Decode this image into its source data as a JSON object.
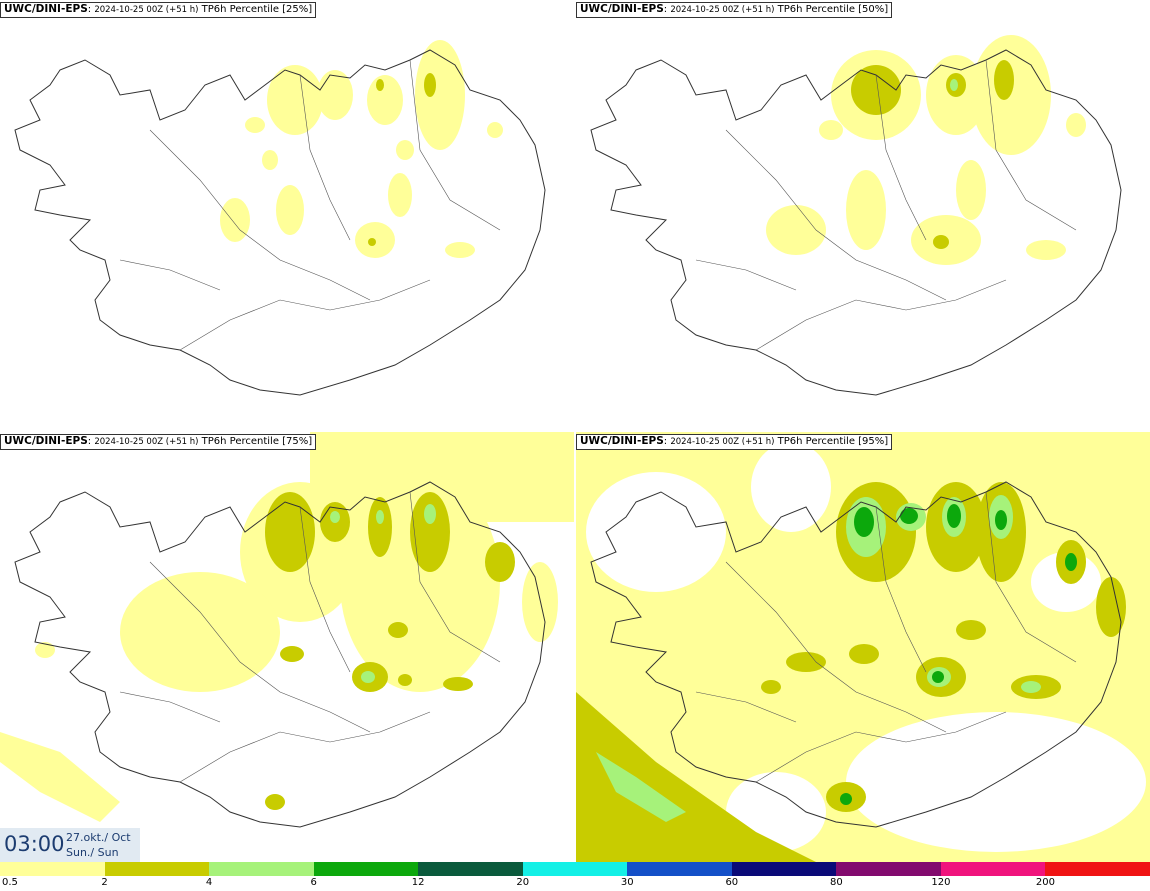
{
  "panels": [
    {
      "model": "UWC/DINI-EPS",
      "run": "2024-10-25 00Z (+51 h)",
      "field": "TP6h Percentile [25%]"
    },
    {
      "model": "UWC/DINI-EPS",
      "run": "2024-10-25 00Z (+51 h)",
      "field": "TP6h Percentile [50%]"
    },
    {
      "model": "UWC/DINI-EPS",
      "run": "2024-10-25 00Z (+51 h)",
      "field": "TP6h Percentile [75%]"
    },
    {
      "model": "UWC/DINI-EPS",
      "run": "2024-10-25 00Z (+51 h)",
      "field": "TP6h Percentile [95%]"
    }
  ],
  "time": {
    "hour": "03:00",
    "date": "27.okt./ Oct",
    "day": "Sun./ Sun"
  },
  "colorbar": {
    "colors": [
      "#ffff99",
      "#c8cc00",
      "#a6f27a",
      "#0ca80c",
      "#0a5a3c",
      "#14f0e6",
      "#1450c8",
      "#0a0a78",
      "#820a6e",
      "#f0147d",
      "#f01414"
    ],
    "ticks": [
      "0.5",
      "2",
      "4",
      "6",
      "12",
      "20",
      "30",
      "60",
      "80",
      "120",
      "200"
    ]
  }
}
